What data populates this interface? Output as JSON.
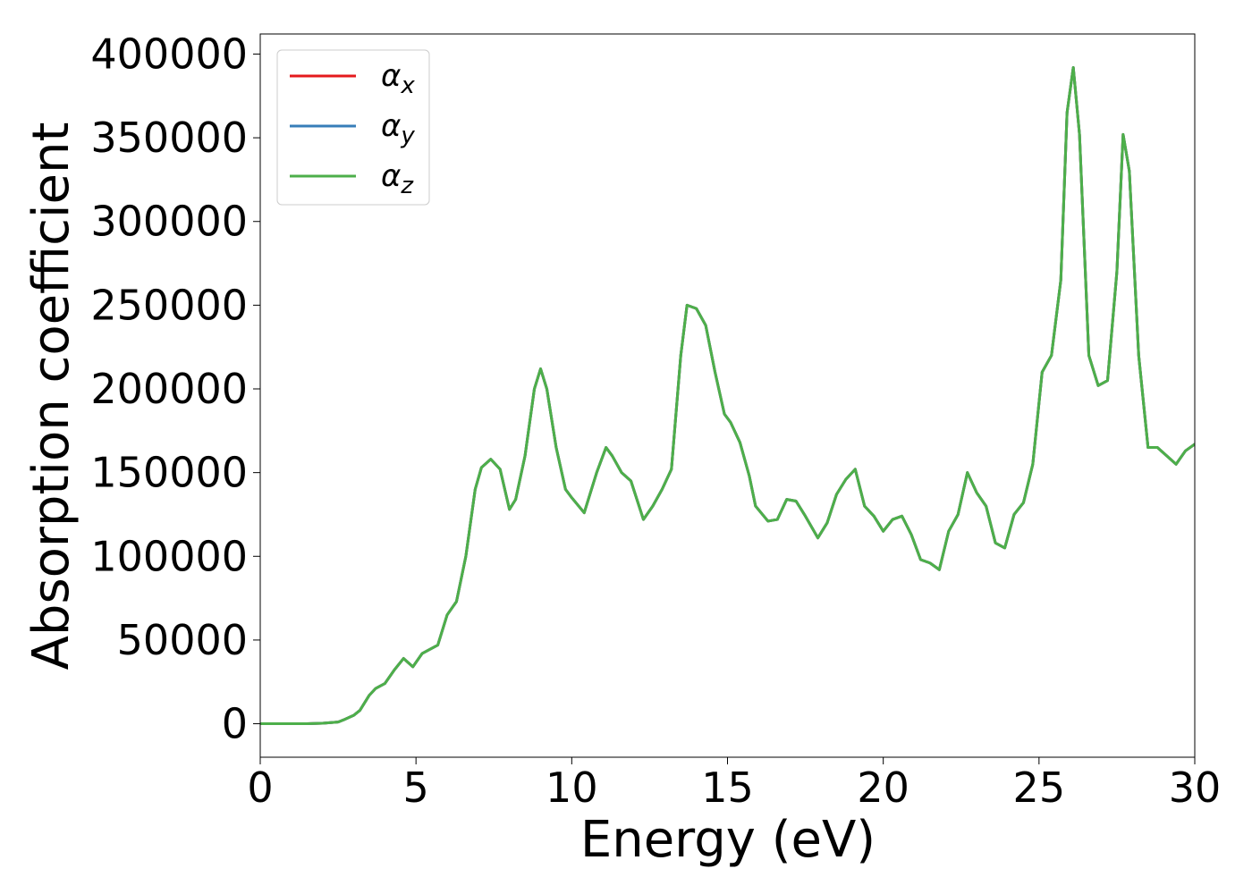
{
  "chart_data": {
    "type": "line",
    "xlabel": "Energy (eV)",
    "ylabel": "Absorption coefficient",
    "xlim": [
      0,
      30
    ],
    "ylim": [
      -20000,
      412000
    ],
    "x_ticks": [
      0,
      5,
      10,
      15,
      20,
      25,
      30
    ],
    "x_tick_labels": [
      "0",
      "5",
      "10",
      "15",
      "20",
      "25",
      "30"
    ],
    "y_ticks": [
      0,
      50000,
      100000,
      150000,
      200000,
      250000,
      300000,
      350000,
      400000
    ],
    "y_tick_labels": [
      "0",
      "50000",
      "100000",
      "150000",
      "200000",
      "250000",
      "300000",
      "350000",
      "400000"
    ],
    "grid": false,
    "legend_position": "top-left",
    "x": [
      0,
      1.0,
      1.5,
      2.0,
      2.5,
      2.7,
      3.0,
      3.2,
      3.5,
      3.7,
      4.0,
      4.3,
      4.6,
      4.9,
      5.2,
      5.4,
      5.7,
      6.0,
      6.3,
      6.6,
      6.9,
      7.1,
      7.4,
      7.7,
      8.0,
      8.2,
      8.5,
      8.8,
      9.0,
      9.2,
      9.5,
      9.8,
      10.0,
      10.4,
      10.8,
      11.1,
      11.3,
      11.6,
      11.9,
      12.3,
      12.6,
      12.9,
      13.2,
      13.5,
      13.7,
      14.0,
      14.3,
      14.6,
      14.9,
      15.1,
      15.4,
      15.7,
      15.9,
      16.3,
      16.6,
      16.9,
      17.2,
      17.5,
      17.9,
      18.2,
      18.5,
      18.8,
      19.1,
      19.4,
      19.7,
      20.0,
      20.3,
      20.6,
      20.9,
      21.2,
      21.5,
      21.8,
      22.1,
      22.4,
      22.7,
      23.0,
      23.3,
      23.6,
      23.9,
      24.2,
      24.5,
      24.8,
      25.1,
      25.4,
      25.7,
      25.9,
      26.1,
      26.3,
      26.6,
      26.9,
      27.2,
      27.5,
      27.7,
      27.9,
      28.2,
      28.5,
      28.8,
      29.1,
      29.4,
      29.7,
      30.0
    ],
    "series": [
      {
        "name": "α_x",
        "color": "#e41a1c",
        "values": [
          0,
          0,
          0,
          300,
          1000,
          2500,
          5000,
          8000,
          17000,
          21000,
          24000,
          32000,
          39000,
          34000,
          42000,
          44000,
          47000,
          65000,
          73000,
          100000,
          140000,
          153000,
          158000,
          152000,
          128000,
          134000,
          160000,
          200000,
          212000,
          200000,
          165000,
          140000,
          135000,
          126000,
          150000,
          165000,
          160000,
          150000,
          145000,
          122000,
          130000,
          140000,
          152000,
          220000,
          250000,
          248000,
          238000,
          210000,
          185000,
          180000,
          168000,
          148000,
          130000,
          121000,
          122000,
          134000,
          133000,
          124000,
          111000,
          120000,
          137000,
          146000,
          152000,
          130000,
          124000,
          115000,
          122000,
          124000,
          113000,
          98000,
          96000,
          92000,
          115000,
          125000,
          150000,
          138000,
          130000,
          108000,
          105000,
          125000,
          132000,
          155000,
          210000,
          220000,
          265000,
          365000,
          392000,
          352000,
          220000,
          202000,
          205000,
          270000,
          352000,
          330000,
          220000,
          165000,
          165000,
          160000,
          155000,
          163000,
          167000
        ]
      },
      {
        "name": "α_y",
        "color": "#377eb8",
        "values": [
          0,
          0,
          0,
          300,
          1000,
          2500,
          5000,
          8000,
          17000,
          21000,
          24000,
          32000,
          39000,
          34000,
          42000,
          44000,
          47000,
          65000,
          73000,
          100000,
          140000,
          153000,
          158000,
          152000,
          128000,
          134000,
          160000,
          200000,
          212000,
          200000,
          165000,
          140000,
          135000,
          126000,
          150000,
          165000,
          160000,
          150000,
          145000,
          122000,
          130000,
          140000,
          152000,
          220000,
          250000,
          248000,
          238000,
          210000,
          185000,
          180000,
          168000,
          148000,
          130000,
          121000,
          122000,
          134000,
          133000,
          124000,
          111000,
          120000,
          137000,
          146000,
          152000,
          130000,
          124000,
          115000,
          122000,
          124000,
          113000,
          98000,
          96000,
          92000,
          115000,
          125000,
          150000,
          138000,
          130000,
          108000,
          105000,
          125000,
          132000,
          155000,
          210000,
          220000,
          265000,
          365000,
          392000,
          352000,
          220000,
          202000,
          205000,
          270000,
          352000,
          330000,
          220000,
          165000,
          165000,
          160000,
          155000,
          163000,
          167000
        ]
      },
      {
        "name": "α_z",
        "color": "#4daf4a",
        "values": [
          0,
          0,
          0,
          300,
          1000,
          2500,
          5000,
          8000,
          17000,
          21000,
          24000,
          32000,
          39000,
          34000,
          42000,
          44000,
          47000,
          65000,
          73000,
          100000,
          140000,
          153000,
          158000,
          152000,
          128000,
          134000,
          160000,
          200000,
          212000,
          200000,
          165000,
          140000,
          135000,
          126000,
          150000,
          165000,
          160000,
          150000,
          145000,
          122000,
          130000,
          140000,
          152000,
          220000,
          250000,
          248000,
          238000,
          210000,
          185000,
          180000,
          168000,
          148000,
          130000,
          121000,
          122000,
          134000,
          133000,
          124000,
          111000,
          120000,
          137000,
          146000,
          152000,
          130000,
          124000,
          115000,
          122000,
          124000,
          113000,
          98000,
          96000,
          92000,
          115000,
          125000,
          150000,
          138000,
          130000,
          108000,
          105000,
          125000,
          132000,
          155000,
          210000,
          220000,
          265000,
          365000,
          392000,
          352000,
          220000,
          202000,
          205000,
          270000,
          352000,
          330000,
          220000,
          165000,
          165000,
          160000,
          155000,
          163000,
          167000
        ]
      }
    ],
    "legend_labels": [
      {
        "base": "α",
        "sub": "x"
      },
      {
        "base": "α",
        "sub": "y"
      },
      {
        "base": "α",
        "sub": "z"
      }
    ]
  }
}
